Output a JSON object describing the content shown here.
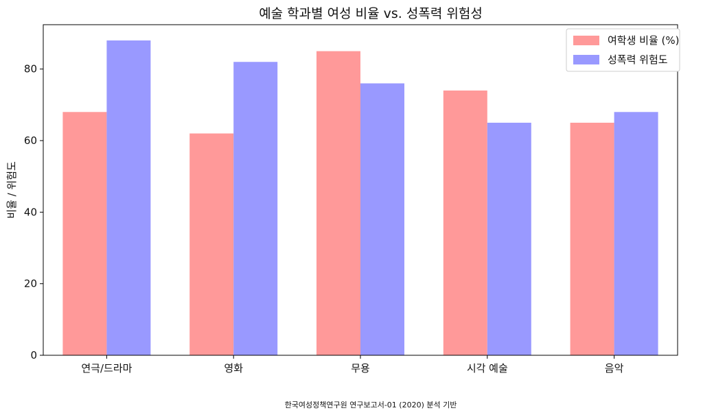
{
  "chart_data": {
    "type": "bar",
    "title": "예술 학과별 여성 비율 vs. 성폭력 위험성",
    "xlabel": "",
    "ylabel": "비율 / 위험도",
    "categories": [
      "연극/드라마",
      "영화",
      "무용",
      "시각 예술",
      "음악"
    ],
    "series": [
      {
        "name": "여학생 비율 (%)",
        "values": [
          68,
          62,
          85,
          74,
          65
        ],
        "color": "#ff9999"
      },
      {
        "name": "성폭력 위험도",
        "values": [
          88,
          82,
          76,
          65,
          68
        ],
        "color": "#9999ff"
      }
    ],
    "ylim": [
      0,
      92.4
    ],
    "yticks": [
      0,
      20,
      40,
      60,
      80
    ],
    "grid": false,
    "legend_position": "top-right"
  },
  "footnote": "한국여성정책연구원 연구보고서-01 (2020) 분석 기반"
}
